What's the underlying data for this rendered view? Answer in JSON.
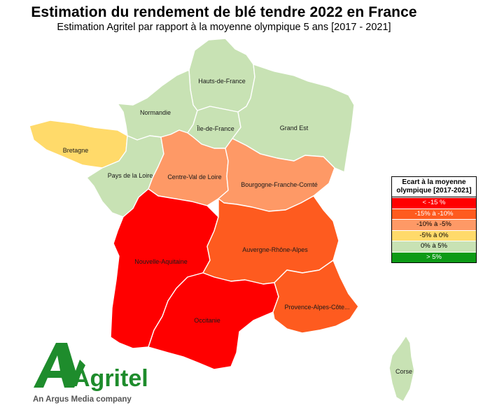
{
  "header": {
    "title": "Estimation du rendement de blé tendre 2022 en France",
    "subtitle": "Estimation Agritel par rapport à la moyenne olympique 5 ans [2017 - 2021]"
  },
  "colors": {
    "lt_-15": "#ff0000",
    "-15_-10": "#fe5b1f",
    "-10_-5": "#fe9966",
    "-5_0": "#ffda6a",
    "0_5": "#c8e2b4",
    "gt_5": "#0d9a16"
  },
  "regions": [
    {
      "id": "hauts-de-france",
      "label": "Hauts-de-France",
      "class": "0_5"
    },
    {
      "id": "normandie",
      "label": "Normandie",
      "class": "0_5"
    },
    {
      "id": "ile-de-france",
      "label": "Île-de-France",
      "class": "0_5"
    },
    {
      "id": "grand-est",
      "label": "Grand Est",
      "class": "0_5"
    },
    {
      "id": "bretagne",
      "label": "Bretagne",
      "class": "-5_0"
    },
    {
      "id": "pays-de-la-loire",
      "label": "Pays de la Loire",
      "class": "0_5"
    },
    {
      "id": "centre-val-de-loire",
      "label": "Centre-Val de Loire",
      "class": "-10_-5"
    },
    {
      "id": "bourgogne-franche-comte",
      "label": "Bourgogne-Franche-Comté",
      "class": "-10_-5"
    },
    {
      "id": "nouvelle-aquitaine",
      "label": "Nouvelle-Aquitaine",
      "class": "lt_-15"
    },
    {
      "id": "auvergne-rhone-alpes",
      "label": "Auvergne-Rhône-Alpes",
      "class": "-15_-10"
    },
    {
      "id": "occitanie",
      "label": "Occitanie",
      "class": "lt_-15"
    },
    {
      "id": "provence-alpes-cote",
      "label": "Provence-Alpes-Côte...",
      "class": "-15_-10"
    },
    {
      "id": "corse",
      "label": "Corse",
      "class": "0_5"
    }
  ],
  "legend": {
    "title": "Ecart à la moyenne olympique [2017-2021]",
    "items": [
      {
        "key": "lt_-15",
        "label": "< -15 %",
        "text_color": "#ffffff"
      },
      {
        "key": "-15_-10",
        "label": "-15% à -10%",
        "text_color": "#ffffff"
      },
      {
        "key": "-10_-5",
        "label": "-10% à -5%",
        "text_color": "#000000"
      },
      {
        "key": "-5_0",
        "label": "-5% à 0%",
        "text_color": "#000000"
      },
      {
        "key": "0_5",
        "label": "0% à 5%",
        "text_color": "#000000"
      },
      {
        "key": "gt_5",
        "label": "> 5%",
        "text_color": "#ffffff"
      }
    ]
  },
  "logo": {
    "brand_color": "#1e8c2c",
    "wordmark": "Agritel",
    "tagline": "An Argus Media company"
  }
}
